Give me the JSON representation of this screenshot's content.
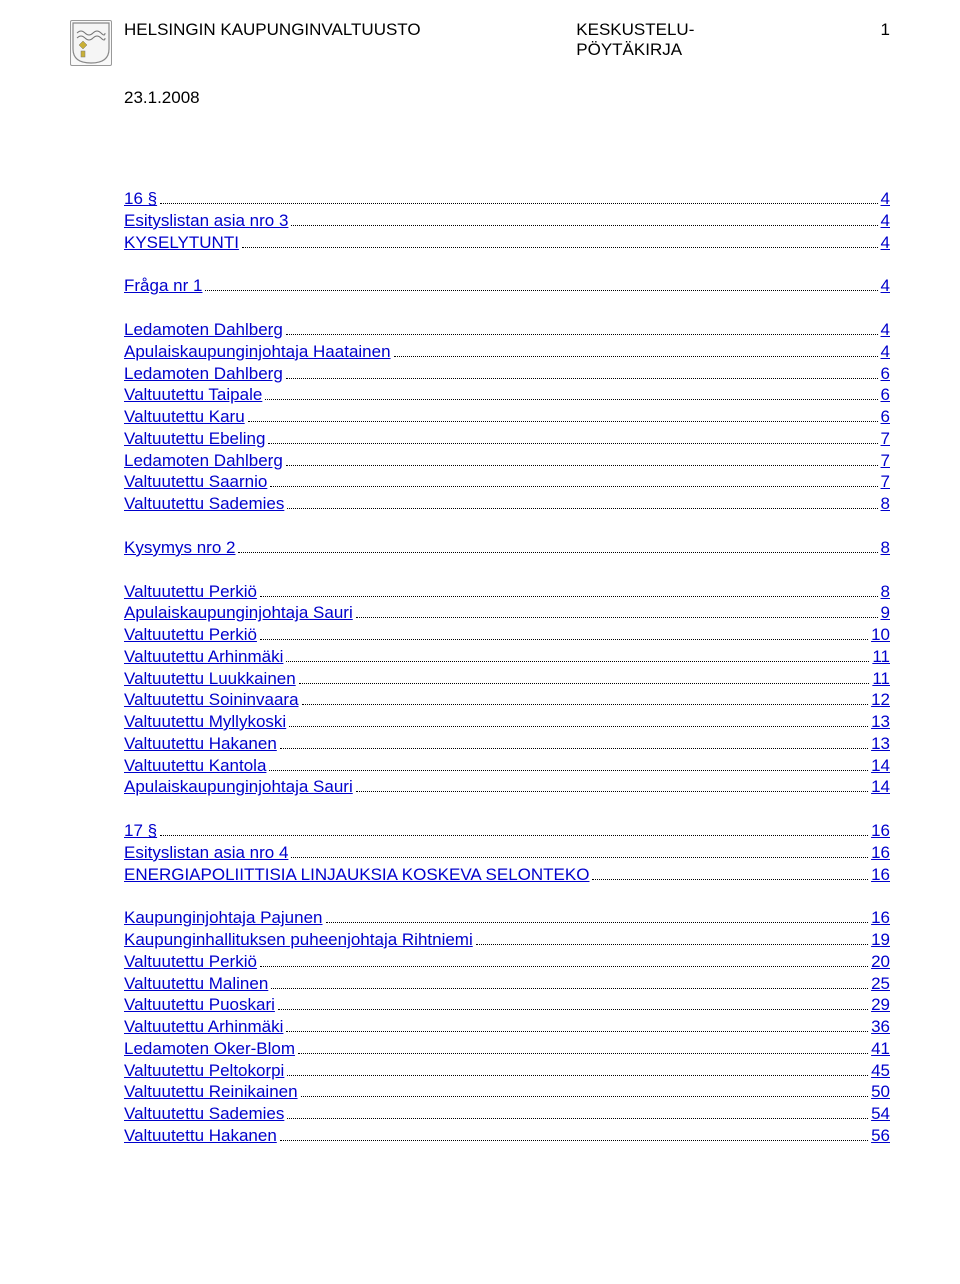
{
  "header": {
    "org": "HELSINGIN KAUPUNGINVALTUUSTO",
    "doc_type_line1": "KESKUSTELU-",
    "doc_type_line2": "PÖYTÄKIRJA",
    "page_number": "1",
    "date": "23.1.2008"
  },
  "colors": {
    "link": "#0000cc",
    "text": "#000000",
    "leader": "#000000",
    "background": "#ffffff"
  },
  "toc_groups": [
    [
      {
        "label": "16 §",
        "page": "4"
      },
      {
        "label": "Esityslistan asia nro 3",
        "page": "4"
      },
      {
        "label": "KYSELYTUNTI",
        "page": "4"
      }
    ],
    [
      {
        "label": "Fråga nr 1",
        "page": "4"
      }
    ],
    [
      {
        "label": "Ledamoten Dahlberg",
        "page": "4"
      },
      {
        "label": "Apulaiskaupunginjohtaja Haatainen",
        "page": "4"
      },
      {
        "label": "Ledamoten Dahlberg",
        "page": "6"
      },
      {
        "label": "Valtuutettu Taipale",
        "page": "6"
      },
      {
        "label": "Valtuutettu Karu",
        "page": "6"
      },
      {
        "label": "Valtuutettu Ebeling",
        "page": "7"
      },
      {
        "label": "Ledamoten Dahlberg",
        "page": "7"
      },
      {
        "label": "Valtuutettu Saarnio",
        "page": "7"
      },
      {
        "label": "Valtuutettu Sademies",
        "page": "8"
      }
    ],
    [
      {
        "label": "Kysymys nro 2",
        "page": "8"
      }
    ],
    [
      {
        "label": "Valtuutettu Perkiö",
        "page": "8"
      },
      {
        "label": "Apulaiskaupunginjohtaja Sauri",
        "page": "9"
      },
      {
        "label": "Valtuutettu Perkiö",
        "page": "10"
      },
      {
        "label": "Valtuutettu Arhinmäki",
        "page": "11"
      },
      {
        "label": "Valtuutettu Luukkainen",
        "page": "11"
      },
      {
        "label": "Valtuutettu Soininvaara",
        "page": "12"
      },
      {
        "label": "Valtuutettu Myllykoski",
        "page": "13"
      },
      {
        "label": "Valtuutettu Hakanen",
        "page": "13"
      },
      {
        "label": "Valtuutettu Kantola",
        "page": "14"
      },
      {
        "label": "Apulaiskaupunginjohtaja Sauri",
        "page": "14"
      }
    ],
    [
      {
        "label": "17 §",
        "page": "16"
      },
      {
        "label": "Esityslistan asia nro 4",
        "page": "16"
      },
      {
        "label": "ENERGIAPOLIITTISIA LINJAUKSIA KOSKEVA SELONTEKO",
        "page": "16"
      }
    ],
    [
      {
        "label": "Kaupunginjohtaja Pajunen",
        "page": "16"
      },
      {
        "label": "Kaupunginhallituksen puheenjohtaja Rihtniemi",
        "page": "19"
      },
      {
        "label": "Valtuutettu Perkiö",
        "page": "20"
      },
      {
        "label": "Valtuutettu Malinen",
        "page": "25"
      },
      {
        "label": "Valtuutettu Puoskari",
        "page": "29"
      },
      {
        "label": "Valtuutettu Arhinmäki",
        "page": "36"
      },
      {
        "label": "Ledamoten Oker-Blom",
        "page": "41"
      },
      {
        "label": "Valtuutettu Peltokorpi",
        "page": "45"
      },
      {
        "label": "Valtuutettu Reinikainen",
        "page": "50"
      },
      {
        "label": "Valtuutettu Sademies",
        "page": "54"
      },
      {
        "label": "Valtuutettu Hakanen",
        "page": "56"
      }
    ]
  ]
}
